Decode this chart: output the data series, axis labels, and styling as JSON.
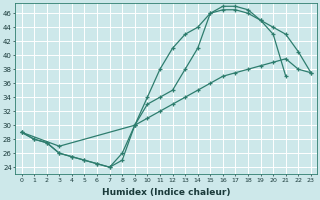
{
  "xlabel": "Humidex (Indice chaleur)",
  "ylabel": "",
  "bg_color": "#cde8ea",
  "grid_color": "#ffffff",
  "line_color": "#2e7d6e",
  "xlim": [
    -0.5,
    23.5
  ],
  "ylim": [
    23.0,
    47.5
  ],
  "xticks": [
    0,
    1,
    2,
    3,
    4,
    5,
    6,
    7,
    8,
    9,
    10,
    11,
    12,
    13,
    14,
    15,
    16,
    17,
    18,
    19,
    20,
    21,
    22,
    23
  ],
  "yticks": [
    24,
    26,
    28,
    30,
    32,
    34,
    36,
    38,
    40,
    42,
    44,
    46
  ],
  "line1_x": [
    0,
    1,
    2,
    3,
    4,
    5,
    6,
    7,
    8,
    9,
    10,
    11,
    12,
    13,
    14,
    15,
    16,
    17,
    18,
    19,
    20,
    21
  ],
  "line1_y": [
    29,
    28,
    27.5,
    26,
    25.5,
    25,
    24.5,
    24,
    25,
    30,
    34,
    38,
    41,
    43,
    44,
    46,
    46.5,
    46.5,
    46,
    45,
    43,
    37
  ],
  "line2_x": [
    0,
    1,
    2,
    3,
    4,
    5,
    6,
    7,
    8,
    9,
    10,
    11,
    12,
    13,
    14,
    15,
    16,
    17,
    18,
    19,
    20,
    21,
    22,
    23
  ],
  "line2_y": [
    29,
    28,
    27.5,
    26,
    25.5,
    25,
    24.5,
    24,
    26,
    30,
    33,
    34,
    35,
    38,
    41,
    46,
    47,
    47,
    46.5,
    45,
    44,
    43,
    40.5,
    37.5
  ],
  "line3_x": [
    0,
    3,
    9,
    10,
    11,
    12,
    13,
    14,
    15,
    16,
    17,
    18,
    19,
    20,
    21,
    22,
    23
  ],
  "line3_y": [
    29,
    27,
    30,
    31,
    32,
    33,
    34,
    35,
    36,
    37,
    37.5,
    38,
    38.5,
    39,
    39.5,
    38,
    37.5
  ]
}
